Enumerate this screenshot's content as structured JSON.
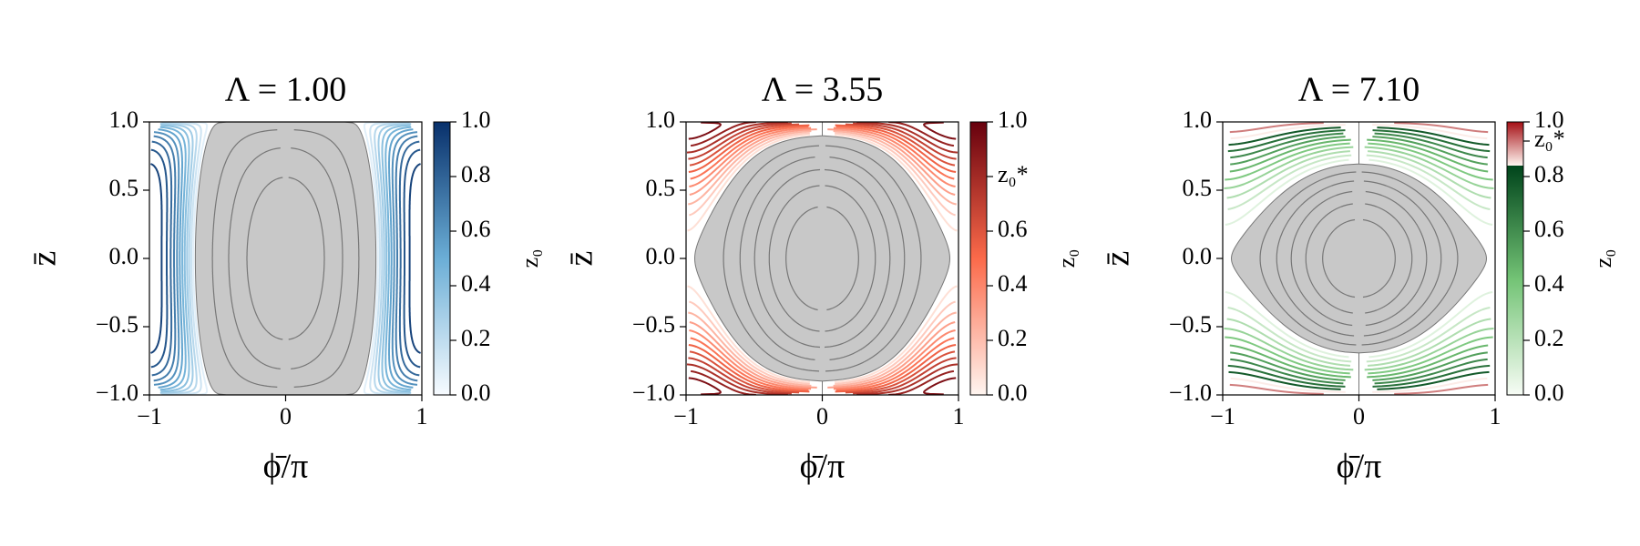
{
  "chart_data": [
    {
      "type": "contour",
      "title": "Λ = 1.00",
      "xlabel": "ϕ̄/π",
      "ylabel": "z̄",
      "xlim": [
        -1,
        1
      ],
      "ylim": [
        -1,
        1
      ],
      "xticks": [
        {
          "value": -1,
          "label": "−1"
        },
        0,
        1
      ],
      "yticks": [
        {
          "value": -1,
          "label": "−1.0"
        },
        {
          "value": -0.5,
          "label": "−0.5"
        },
        {
          "value": 0,
          "label": "0.0"
        },
        0.5,
        {
          "value": 1,
          "label": "1.0"
        }
      ],
      "colorbar": {
        "label": "z₀",
        "lim": [
          0,
          1
        ],
        "ticks": [
          {
            "value": 0,
            "label": "0.0"
          },
          0.2,
          0.4,
          0.6,
          0.8,
          {
            "value": 1,
            "label": "1.0"
          }
        ],
        "stops": [
          {
            "value": 0,
            "color": "#f7fbff"
          },
          {
            "value": 0.5,
            "color": "#6baed6"
          },
          {
            "value": 1,
            "color": "#08306b"
          }
        ]
      }
    },
    {
      "type": "contour",
      "title": "Λ = 3.55",
      "xlabel": "ϕ̄/π",
      "ylabel": "z̄",
      "xlim": [
        -1,
        1
      ],
      "ylim": [
        -1,
        1
      ],
      "xticks": [
        {
          "value": -1,
          "label": "−1"
        },
        0,
        1
      ],
      "yticks": [
        {
          "value": -1,
          "label": "−1.0"
        },
        {
          "value": -0.5,
          "label": "−0.5"
        },
        {
          "value": 0,
          "label": "0.0"
        },
        0.5,
        {
          "value": 1,
          "label": "1.0"
        }
      ],
      "colorbar": {
        "label": "z₀",
        "lim": [
          0,
          1
        ],
        "ticks": [
          {
            "value": 0,
            "label": "0.0"
          },
          0.2,
          0.4,
          0.6,
          {
            "value": 0.8,
            "label": "z₀*"
          },
          {
            "value": 1,
            "label": "1.0"
          }
        ],
        "stops": [
          {
            "value": 0,
            "color": "#fff5f0"
          },
          {
            "value": 0.5,
            "color": "#fb6a4a"
          },
          {
            "value": 1,
            "color": "#67000d"
          }
        ]
      }
    },
    {
      "type": "contour",
      "title": "Λ = 7.10",
      "xlabel": "ϕ̄/π",
      "ylabel": "z̄",
      "xlim": [
        -1,
        1
      ],
      "ylim": [
        -1,
        1
      ],
      "xticks": [
        {
          "value": -1,
          "label": "−1"
        },
        0,
        1
      ],
      "yticks": [
        {
          "value": -1,
          "label": "−1.0"
        },
        {
          "value": -0.5,
          "label": "−0.5"
        },
        {
          "value": 0,
          "label": "0.0"
        },
        0.5,
        {
          "value": 1,
          "label": "1.0"
        }
      ],
      "colorbar": {
        "label": "z₀",
        "lim": [
          0,
          1
        ],
        "ticks": [
          {
            "value": 0,
            "label": "0.0"
          },
          0.2,
          0.4,
          0.6,
          0.8,
          {
            "value": 0.93,
            "label": "z₀*"
          },
          {
            "value": 1,
            "label": "1.0"
          }
        ],
        "stops": [
          {
            "value": 0,
            "color": "#f7fcf5"
          },
          {
            "value": 0.42,
            "color": "#74c476"
          },
          {
            "value": 0.84,
            "color": "#00441b"
          },
          {
            "value": 0.84,
            "color": "#fff5f0"
          },
          {
            "value": 1,
            "color": "#a50f15"
          }
        ]
      }
    }
  ]
}
